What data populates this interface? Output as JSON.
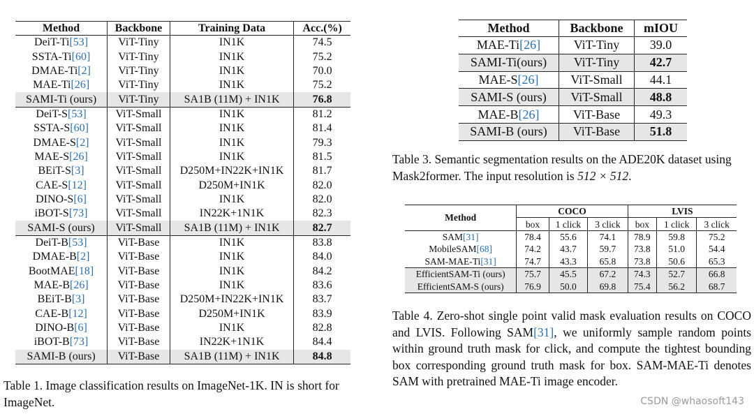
{
  "table1": {
    "headers": [
      "Method",
      "Backbone",
      "Training Data",
      "Acc.(%)"
    ],
    "rows": [
      {
        "method": "DeiT-Ti",
        "cite": "[53]",
        "backbone": "ViT-Tiny",
        "data": "IN1K",
        "acc": "74.5"
      },
      {
        "method": "SSTA-Ti",
        "cite": "[60]",
        "backbone": "ViT-Tiny",
        "data": "IN1K",
        "acc": "75.2"
      },
      {
        "method": "DMAE-Ti",
        "cite": "[2]",
        "backbone": "ViT-Tiny",
        "data": "IN1K",
        "acc": "70.0"
      },
      {
        "method": "MAE-Ti",
        "cite": "[26]",
        "backbone": "ViT-Tiny",
        "data": "IN1K",
        "acc": "75.2"
      },
      {
        "method": "SAMI-Ti (ours)",
        "cite": "",
        "backbone": "ViT-Tiny",
        "data": "SA1B (11M) + IN1K",
        "acc": "76.8",
        "highlight": true
      },
      {
        "method": "DeiT-S",
        "cite": "[53]",
        "backbone": "ViT-Small",
        "data": "IN1K",
        "acc": "81.2"
      },
      {
        "method": "SSTA-S",
        "cite": "[60]",
        "backbone": "ViT-Small",
        "data": "IN1K",
        "acc": "81.4"
      },
      {
        "method": "DMAE-S",
        "cite": "[2]",
        "backbone": "ViT-Small",
        "data": "IN1K",
        "acc": "79.3"
      },
      {
        "method": "MAE-S",
        "cite": "[26]",
        "backbone": "ViT-Small",
        "data": "IN1K",
        "acc": "81.5"
      },
      {
        "method": "BEiT-S",
        "cite": "[3]",
        "backbone": "ViT-Small",
        "data": "D250M+IN22K+IN1K",
        "acc": "81.7"
      },
      {
        "method": "CAE-S",
        "cite": "[12]",
        "backbone": "ViT-Small",
        "data": "D250M+IN1K",
        "acc": "82.0"
      },
      {
        "method": "DINO-S",
        "cite": "[6]",
        "backbone": "ViT-Small",
        "data": "IN1K",
        "acc": "82.0"
      },
      {
        "method": "iBOT-S",
        "cite": "[73]",
        "backbone": "ViT-Small",
        "data": "IN22K+1N1K",
        "acc": "82.3"
      },
      {
        "method": "SAMI-S (ours)",
        "cite": "",
        "backbone": "ViT-Small",
        "data": "SA1B (11M) + IN1K",
        "acc": "82.7",
        "highlight": true
      },
      {
        "method": "DeiT-B",
        "cite": "[53]",
        "backbone": "ViT-Base",
        "data": "IN1K",
        "acc": "83.8"
      },
      {
        "method": "DMAE-B",
        "cite": "[2]",
        "backbone": "ViT-Base",
        "data": "IN1K",
        "acc": "84.0"
      },
      {
        "method": "BootMAE",
        "cite": "[18]",
        "backbone": "ViT-Base",
        "data": "IN1K",
        "acc": "84.2"
      },
      {
        "method": "MAE-B",
        "cite": "[26]",
        "backbone": "ViT-Base",
        "data": "IN1K",
        "acc": "83.6"
      },
      {
        "method": "BEiT-B",
        "cite": "[3]",
        "backbone": "ViT-Base",
        "data": "D250M+IN22K+IN1K",
        "acc": "83.7"
      },
      {
        "method": "CAE-B",
        "cite": "[12]",
        "backbone": "ViT-Base",
        "data": "D250M+IN1K",
        "acc": "83.9"
      },
      {
        "method": "DINO-B",
        "cite": "[6]",
        "backbone": "ViT-Base",
        "data": "IN1K",
        "acc": "82.8"
      },
      {
        "method": "iBOT-B",
        "cite": "[73]",
        "backbone": "ViT-Base",
        "data": "IN22K+1N1K",
        "acc": "84.4"
      },
      {
        "method": "SAMI-B (ours)",
        "cite": "",
        "backbone": "ViT-Base",
        "data": "SA1B (11M) + IN1K",
        "acc": "84.8",
        "highlight": true
      }
    ],
    "caption": "Table 1. Image classification results on ImageNet-1K. IN is short for ImageNet."
  },
  "table3": {
    "headers": [
      "Method",
      "Backbone",
      "mIOU"
    ],
    "rows": [
      {
        "method": "MAE-Ti",
        "cite": "[26]",
        "backbone": "ViT-Tiny",
        "miou": "39.0"
      },
      {
        "method": "SAMI-Ti(ours)",
        "cite": "",
        "backbone": "ViT-Tiny",
        "miou": "42.7",
        "highlight": true
      },
      {
        "method": "MAE-S",
        "cite": "[26]",
        "backbone": "ViT-Small",
        "miou": "44.1"
      },
      {
        "method": "SAMI-S (ours)",
        "cite": "",
        "backbone": "ViT-Small",
        "miou": "48.8",
        "highlight": true
      },
      {
        "method": "MAE-B",
        "cite": "[26]",
        "backbone": "ViT-Base",
        "miou": "49.3"
      },
      {
        "method": "SAMI-B (ours)",
        "cite": "",
        "backbone": "ViT-Base",
        "miou": "51.8",
        "highlight": true
      }
    ],
    "caption_text": "Table 3. Semantic segmentation results on the ADE20K dataset using Mask2former. The input resolution is ",
    "caption_math": "512 × 512",
    "caption_end": "."
  },
  "table4": {
    "method_header": "Method",
    "groups": [
      "COCO",
      "LVIS"
    ],
    "subheaders": [
      "box",
      "1 click",
      "3 click",
      "box",
      "1 click",
      "3 click"
    ],
    "rows": [
      {
        "method": "SAM",
        "cite": "[31]",
        "values": [
          "78.4",
          "55.6",
          "74.1",
          "78.9",
          "59.8",
          "75.2"
        ]
      },
      {
        "method": "MobileSAM",
        "cite": "[68]",
        "values": [
          "74.2",
          "43.7",
          "59.7",
          "73.8",
          "51.0",
          "54.4"
        ]
      },
      {
        "method": "SAM-MAE-Ti",
        "cite": "[31]",
        "values": [
          "74.7",
          "43.3",
          "65.8",
          "73.8",
          "50.6",
          "65.3"
        ]
      },
      {
        "method": "EfficientSAM-Ti (ours)",
        "cite": "",
        "values": [
          "75.7",
          "45.5",
          "67.2",
          "74.3",
          "52.7",
          "66.8"
        ],
        "highlight": true
      },
      {
        "method": "EfficientSAM-S (ours)",
        "cite": "",
        "values": [
          "76.9",
          "50.0",
          "69.8",
          "75.4",
          "56.2",
          "68.7"
        ],
        "highlight": true
      }
    ],
    "caption_a": "Table 4. Zero-shot single point valid mask evaluation results on COCO and LVIS. Following SAM",
    "caption_cite": "[31]",
    "caption_b": ", we uniformly sample random points within ground truth mask for click, and compute the tightest bounding box corresponding ground truth mask for box. SAM-MAE-Ti denotes SAM with pretrained MAE-Ti image encoder."
  },
  "credit": "CSDN @whaosoft143",
  "colors": {
    "citation": "#2a6fb0",
    "highlight_row": "#e6e6e6"
  }
}
